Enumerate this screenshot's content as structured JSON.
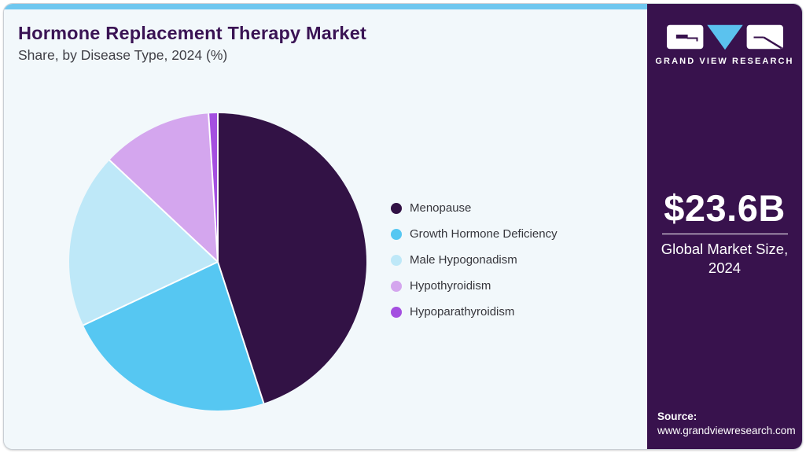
{
  "header": {
    "title": "Hormone Replacement Therapy Market",
    "subtitle": "Share, by Disease Type, 2024 (%)"
  },
  "chart_data": {
    "type": "pie",
    "title": "Hormone Replacement Therapy Market Share, by Disease Type, 2024 (%)",
    "unit": "%",
    "start_angle_deg": 0,
    "direction": "clockwise",
    "legend_position": "right",
    "slices": [
      {
        "label": "Menopause",
        "value": 45,
        "color": "#321245"
      },
      {
        "label": "Growth Hormone Deficiency",
        "value": 23,
        "color": "#56c7f2"
      },
      {
        "label": "Male Hypogonadism",
        "value": 19,
        "color": "#bee8f8"
      },
      {
        "label": "Hypothyroidism",
        "value": 12,
        "color": "#d4a6ee"
      },
      {
        "label": "Hypoparathyroidism",
        "value": 1,
        "color": "#a44fe0"
      }
    ]
  },
  "sidebar": {
    "logo_text": "GRAND VIEW RESEARCH",
    "market_size": "$23.6B",
    "market_size_caption": "Global Market Size, 2024",
    "source_label": "Source:",
    "source_url": "www.grandviewresearch.com"
  },
  "theme": {
    "accent_bar": "#6fc7ef",
    "panel_bg": "#f2f8fb",
    "title_color": "#3a1354",
    "sidebar_bg": "#38124d",
    "logo_triangle": "#5bc2ee",
    "separator": "#ffffff"
  }
}
